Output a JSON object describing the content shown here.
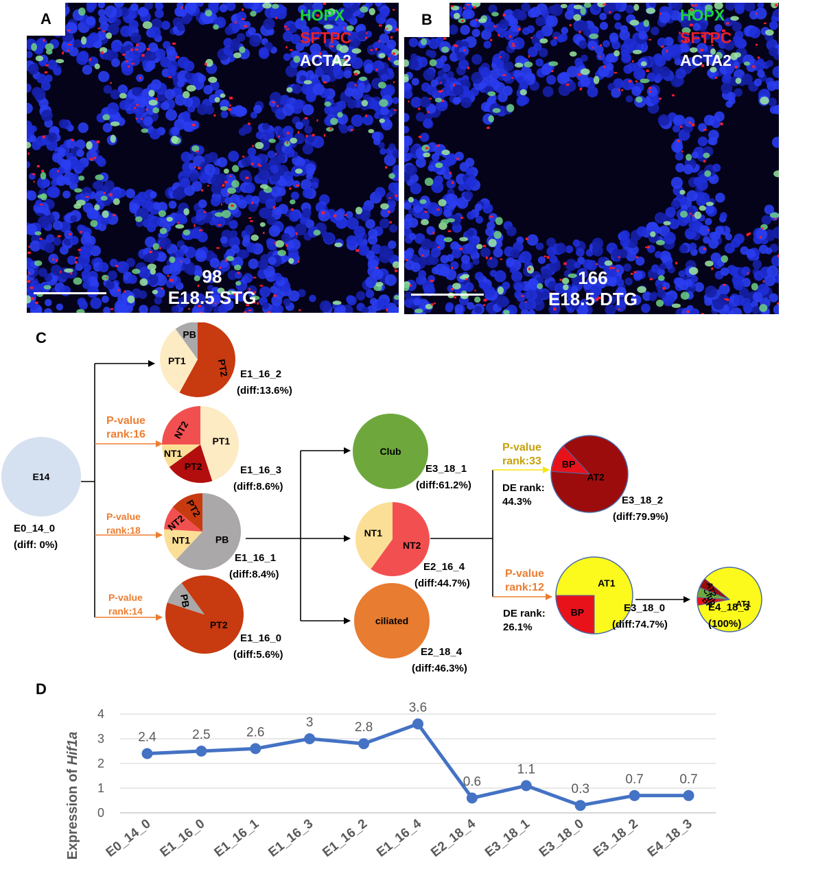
{
  "panel_a": {
    "letter": "A",
    "markers": [
      {
        "text": "HOPX",
        "color": "#1bd43a"
      },
      {
        "text": "SFTPC",
        "color": "#e8202a"
      },
      {
        "text": "ACTA2",
        "color": "#ffffff"
      }
    ],
    "count": "98",
    "condition": "E18.5 STG"
  },
  "panel_b": {
    "letter": "B",
    "markers": [
      {
        "text": "HOPX",
        "color": "#1bd43a"
      },
      {
        "text": "SFTPC",
        "color": "#e8202a"
      },
      {
        "text": "ACTA2",
        "color": "#ffffff"
      }
    ],
    "count": "166",
    "condition": "E18.5 DTG"
  },
  "panel_c": {
    "letter": "C",
    "colors": {
      "PT1": "#fdebc4",
      "PT2": "#c83a10",
      "PB": "#aaa8a8",
      "NT1": "#fbdf96",
      "NT2": "#f25050",
      "E14": "#d5e1f0",
      "Club": "#6ea83d",
      "ciliated": "#e87c30",
      "AT1": "#fcf91c",
      "AT2": "#9c0c0c",
      "BP": "#e8121a",
      "orange_text": "#ed7d31",
      "yellow_text": "#c6a10a",
      "yellow_arrow": "#f7e40c"
    },
    "nodes": [
      {
        "id": "E0_14_0",
        "name": "E0_14_0",
        "diff": "(diff: 0%)",
        "center_label": "E14",
        "slices": [
          {
            "label": "",
            "value": 100,
            "color_key": "E14"
          }
        ]
      },
      {
        "id": "E1_16_2",
        "name": "E1_16_2",
        "diff": "(diff:13.6%)",
        "slices": [
          {
            "label": "PT2",
            "value": 58,
            "color_key": "PT2"
          },
          {
            "label": "PT1",
            "value": 32,
            "color_key": "PT1"
          },
          {
            "label": "PB",
            "value": 10,
            "color_key": "PB"
          }
        ]
      },
      {
        "id": "E1_16_3",
        "name": "E1_16_3",
        "diff": "(diff:8.6%)",
        "slices": [
          {
            "label": "PT1",
            "value": 45,
            "color_key": "PT1"
          },
          {
            "label": "PT2",
            "value": 20,
            "color_key": "PT2b"
          },
          {
            "label": "NT1",
            "value": 10,
            "color_key": "NT1"
          },
          {
            "label": "NT2",
            "value": 25,
            "color_key": "NT2"
          }
        ]
      },
      {
        "id": "E1_16_1",
        "name": "E1_16_1",
        "diff": "(diff:8.4%)",
        "slices": [
          {
            "label": "PB",
            "value": 62,
            "color_key": "PB"
          },
          {
            "label": "NT1",
            "value": 14,
            "color_key": "NT1"
          },
          {
            "label": "NT2",
            "value": 10,
            "color_key": "NT2"
          },
          {
            "label": "PT2",
            "value": 14,
            "color_key": "PT2"
          }
        ]
      },
      {
        "id": "E1_16_0",
        "name": "E1_16_0",
        "diff": "(diff:5.6%)",
        "slices": [
          {
            "label": "PT2",
            "value": 90,
            "color_key": "PT2"
          },
          {
            "label": "PB",
            "value": 10,
            "color_key": "PB"
          }
        ]
      },
      {
        "id": "E3_18_1",
        "name": "E3_18_1",
        "diff": "(diff:61.2%)",
        "center_label": "Club",
        "slices": [
          {
            "label": "",
            "value": 100,
            "color_key": "Club"
          }
        ]
      },
      {
        "id": "E2_16_4",
        "name": "E2_16_4",
        "diff": "(diff:44.7%)",
        "slices": [
          {
            "label": "NT2",
            "value": 60,
            "color_key": "NT2"
          },
          {
            "label": "NT1",
            "value": 40,
            "color_key": "NT1"
          }
        ]
      },
      {
        "id": "E2_18_4",
        "name": "E2_18_4",
        "diff": "(diff:46.3%)",
        "center_label": "ciliated",
        "slices": [
          {
            "label": "",
            "value": 100,
            "color_key": "ciliated"
          }
        ]
      },
      {
        "id": "E3_18_2",
        "name": "E3_18_2",
        "diff": "(diff:79.9%)",
        "slices": [
          {
            "label": "AT2",
            "value": 88,
            "color_key": "AT2"
          },
          {
            "label": "BP",
            "value": 12,
            "color_key": "BP"
          }
        ]
      },
      {
        "id": "E3_18_0",
        "name": "E3_18_0",
        "diff": "(diff:74.7%)",
        "slices": [
          {
            "label": "AT1",
            "value": 75,
            "color_key": "AT1"
          },
          {
            "label": "BP",
            "value": 25,
            "color_key": "BP"
          }
        ]
      },
      {
        "id": "E4_18_3",
        "name": "E4_18_3",
        "diff": "(100%)",
        "slices": [
          {
            "label": "AT1",
            "value": 86,
            "color_key": "AT1"
          },
          {
            "label": "BP",
            "value": 4,
            "color_key": "BP"
          },
          {
            "label": "Club",
            "value": 5,
            "color_key": "Club"
          },
          {
            "label": "AT2",
            "value": 5,
            "color_key": "AT2"
          }
        ]
      }
    ],
    "pvalue_labels": [
      {
        "line1": "P-value",
        "line2": "rank:16",
        "color_key": "orange_text"
      },
      {
        "line1": "P-value",
        "line2": "rank:18",
        "color_key": "orange_text"
      },
      {
        "line1": "P-value",
        "line2": "rank:14",
        "color_key": "orange_text"
      },
      {
        "line1": "P-value",
        "line2": "rank:33",
        "color_key": "yellow_text"
      },
      {
        "line1": "P-value",
        "line2": "rank:12",
        "color_key": "orange_text"
      }
    ],
    "de_labels": [
      {
        "line1": "DE rank:",
        "line2": "44.3%"
      },
      {
        "line1": "DE rank:",
        "line2": "26.1%"
      }
    ]
  },
  "panel_d": {
    "letter": "D"
  },
  "chart_data": {
    "type": "line",
    "categories": [
      "E0_14_0",
      "E1_16_0",
      "E1_16_1",
      "E1_16_3",
      "E1_16_2",
      "E1_16_4",
      "E2_18_4",
      "E3_18_1",
      "E3_18_0",
      "E3_18_2",
      "E4_18_3"
    ],
    "values": [
      2.4,
      2.5,
      2.6,
      3,
      2.8,
      3.6,
      0.6,
      1.1,
      0.3,
      0.7,
      0.7
    ],
    "data_labels": [
      "2.4",
      "2.5",
      "2.6",
      "3",
      "2.8",
      "3.6",
      "0.6",
      "1.1",
      "0.3",
      "0.7",
      "0.7"
    ],
    "ylabel_prefix": "Expression of ",
    "ylabel_gene": "Hif1a",
    "ylim": [
      0,
      4
    ],
    "yticks": [
      "0",
      "1",
      "2",
      "3",
      "4"
    ],
    "grid": true,
    "line_color": "#4472c4"
  }
}
